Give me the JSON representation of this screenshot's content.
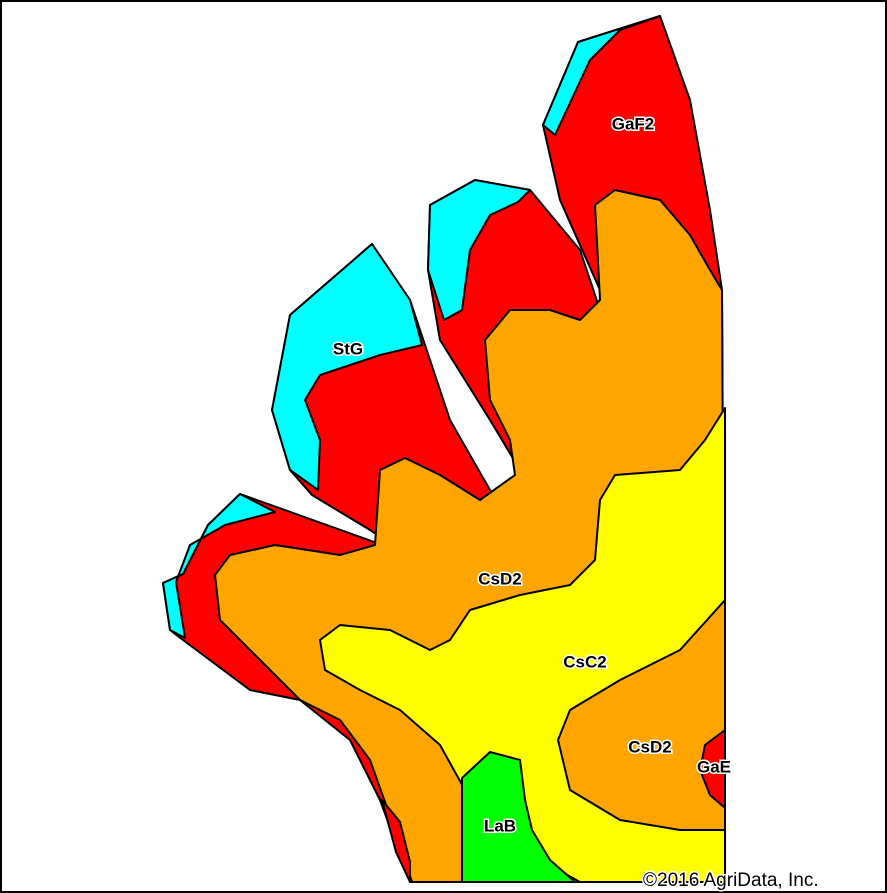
{
  "map": {
    "units": [
      {
        "label": "GaF2"
      },
      {
        "label": "StG"
      },
      {
        "label": "CsD2"
      },
      {
        "label": "CsC2"
      },
      {
        "label": "CsD2"
      },
      {
        "label": "GaE"
      },
      {
        "label": "LaB"
      }
    ],
    "copyright": "©2016 AgriData, Inc."
  }
}
